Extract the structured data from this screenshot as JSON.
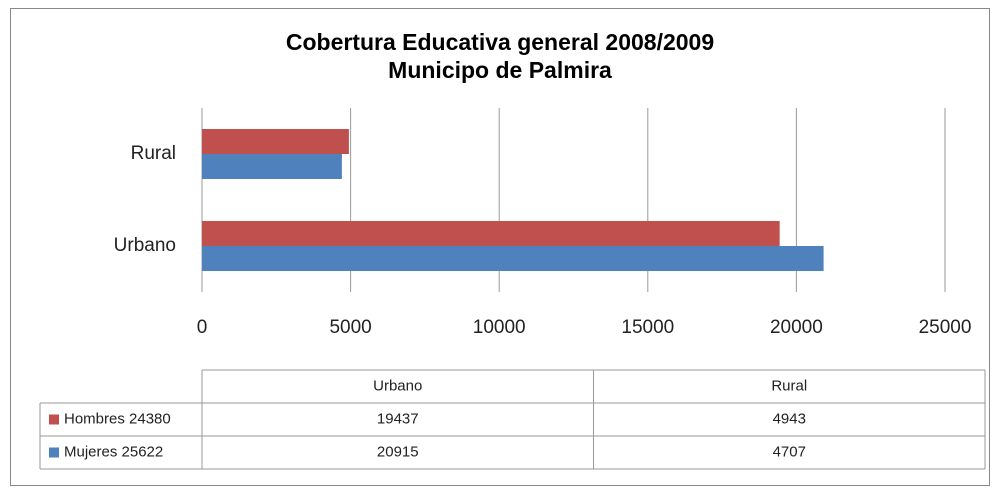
{
  "chart_data": {
    "type": "bar",
    "orientation": "horizontal",
    "title": "Cobertura Educativa general 2008/2009",
    "subtitle": "Municipo de Palmira",
    "categories": [
      "Urbano",
      "Rural"
    ],
    "series": [
      {
        "name": "Hombres 24380",
        "color": "#c0504d",
        "values": [
          19437,
          4943
        ]
      },
      {
        "name": "Mujeres 25622",
        "color": "#4f81bd",
        "values": [
          20915,
          4707
        ]
      }
    ],
    "xlim": [
      0,
      25000
    ],
    "xticks": [
      0,
      5000,
      10000,
      15000,
      20000,
      25000
    ],
    "grid": true,
    "data_table": true
  }
}
